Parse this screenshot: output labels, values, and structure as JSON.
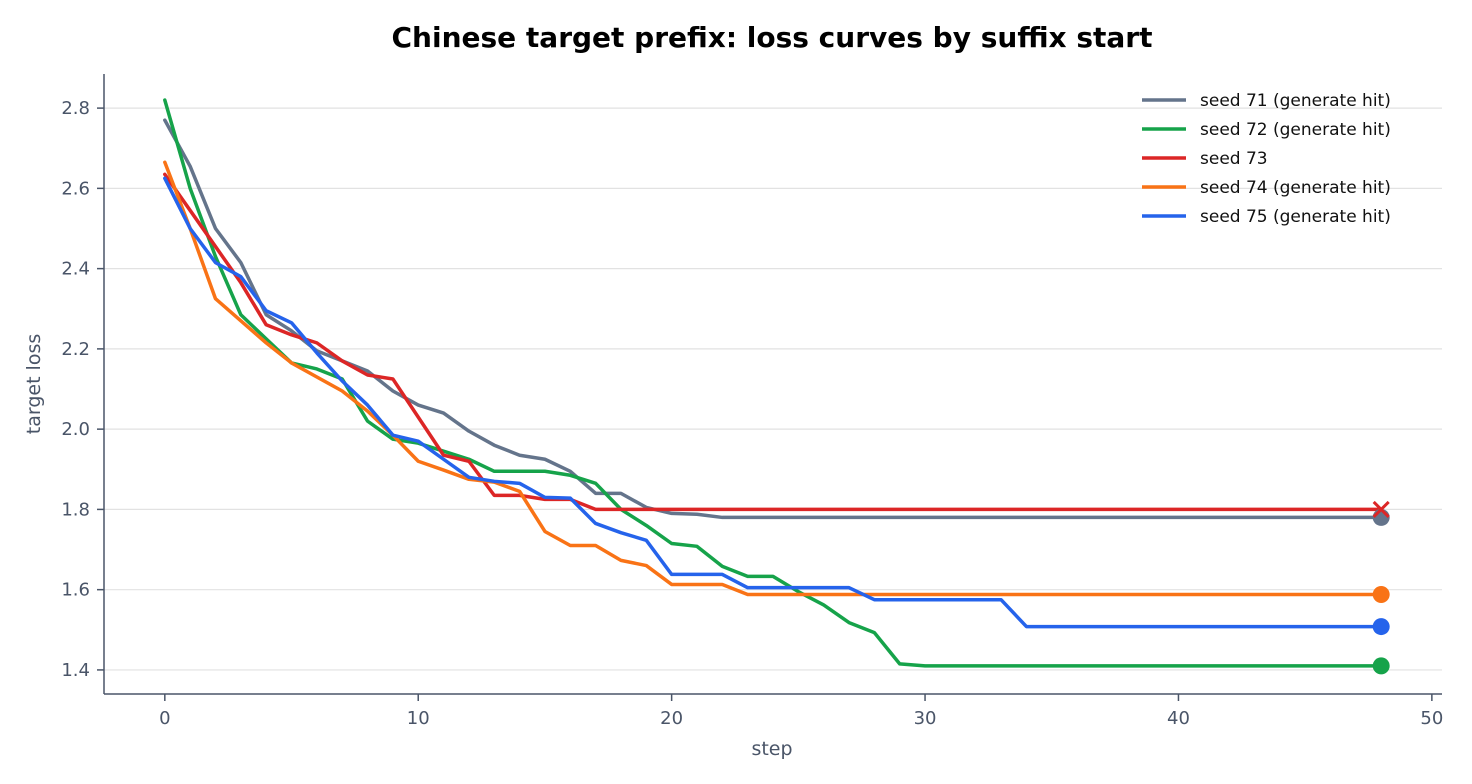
{
  "chart_data": {
    "type": "line",
    "title": "Chinese target prefix: loss curves by suffix start",
    "xlabel": "step",
    "ylabel": "target loss",
    "xlim": [
      -2.4,
      50.4
    ],
    "ylim": [
      1.34,
      2.885
    ],
    "xticks": [
      0,
      10,
      20,
      30,
      40,
      50
    ],
    "yticks": [
      1.4,
      1.6,
      1.8,
      2.0,
      2.2,
      2.4,
      2.6,
      2.8
    ],
    "grid": "horizontal",
    "legend_position": "top-right",
    "series": [
      {
        "name": "seed 71 (generate hit)",
        "color": "#64748b",
        "end_marker": "circle",
        "x": [
          0,
          1,
          2,
          3,
          4,
          5,
          6,
          7,
          8,
          9,
          10,
          11,
          12,
          13,
          14,
          15,
          16,
          17,
          18,
          19,
          20,
          21,
          22,
          23,
          24,
          25,
          26,
          27,
          28,
          29,
          30,
          31,
          32,
          33,
          34,
          35,
          36,
          37,
          38,
          39,
          40,
          41,
          42,
          43,
          44,
          45,
          46,
          47,
          48
        ],
        "y": [
          2.77,
          2.655,
          2.5,
          2.415,
          2.285,
          2.245,
          2.195,
          2.17,
          2.145,
          2.095,
          2.06,
          2.04,
          1.995,
          1.96,
          1.935,
          1.925,
          1.895,
          1.84,
          1.84,
          1.805,
          1.79,
          1.788,
          1.78,
          1.78,
          1.78,
          1.78,
          1.78,
          1.78,
          1.78,
          1.78,
          1.78,
          1.78,
          1.78,
          1.78,
          1.78,
          1.78,
          1.78,
          1.78,
          1.78,
          1.78,
          1.78,
          1.78,
          1.78,
          1.78,
          1.78,
          1.78,
          1.78,
          1.78,
          1.78
        ]
      },
      {
        "name": "seed 72 (generate hit)",
        "color": "#16a34a",
        "end_marker": "circle",
        "x": [
          0,
          1,
          2,
          3,
          4,
          5,
          6,
          7,
          8,
          9,
          10,
          11,
          12,
          13,
          14,
          15,
          16,
          17,
          18,
          19,
          20,
          21,
          22,
          23,
          24,
          25,
          26,
          27,
          28,
          29,
          30,
          31,
          32,
          33,
          34,
          35,
          36,
          37,
          38,
          39,
          40,
          41,
          42,
          43,
          44,
          45,
          46,
          47,
          48
        ],
        "y": [
          2.82,
          2.6,
          2.43,
          2.285,
          2.225,
          2.165,
          2.15,
          2.125,
          2.02,
          1.975,
          1.965,
          1.945,
          1.925,
          1.895,
          1.895,
          1.895,
          1.885,
          1.865,
          1.8,
          1.76,
          1.715,
          1.708,
          1.658,
          1.633,
          1.633,
          1.595,
          1.562,
          1.518,
          1.493,
          1.415,
          1.41,
          1.41,
          1.41,
          1.41,
          1.41,
          1.41,
          1.41,
          1.41,
          1.41,
          1.41,
          1.41,
          1.41,
          1.41,
          1.41,
          1.41,
          1.41,
          1.41,
          1.41,
          1.41
        ]
      },
      {
        "name": "seed 73",
        "color": "#dc2626",
        "end_marker": "x",
        "x": [
          0,
          1,
          2,
          3,
          4,
          5,
          6,
          7,
          8,
          9,
          10,
          11,
          12,
          13,
          14,
          15,
          16,
          17,
          18,
          19,
          20,
          21,
          22,
          23,
          24,
          25,
          26,
          27,
          28,
          29,
          30,
          31,
          32,
          33,
          34,
          35,
          36,
          37,
          38,
          39,
          40,
          41,
          42,
          43,
          44,
          45,
          46,
          47,
          48
        ],
        "y": [
          2.635,
          2.545,
          2.455,
          2.365,
          2.26,
          2.235,
          2.215,
          2.17,
          2.135,
          2.125,
          2.03,
          1.935,
          1.92,
          1.835,
          1.835,
          1.825,
          1.825,
          1.8,
          1.8,
          1.8,
          1.8,
          1.8,
          1.8,
          1.8,
          1.8,
          1.8,
          1.8,
          1.8,
          1.8,
          1.8,
          1.8,
          1.8,
          1.8,
          1.8,
          1.8,
          1.8,
          1.8,
          1.8,
          1.8,
          1.8,
          1.8,
          1.8,
          1.8,
          1.8,
          1.8,
          1.8,
          1.8,
          1.8,
          1.8
        ]
      },
      {
        "name": "seed 74 (generate hit)",
        "color": "#f97316",
        "end_marker": "circle",
        "x": [
          0,
          1,
          2,
          3,
          4,
          5,
          6,
          7,
          8,
          9,
          10,
          11,
          12,
          13,
          14,
          15,
          16,
          17,
          18,
          19,
          20,
          21,
          22,
          23,
          24,
          25,
          26,
          27,
          28,
          29,
          30,
          31,
          32,
          33,
          34,
          35,
          36,
          37,
          38,
          39,
          40,
          41,
          42,
          43,
          44,
          45,
          46,
          47,
          48
        ],
        "y": [
          2.665,
          2.5,
          2.325,
          2.27,
          2.215,
          2.165,
          2.13,
          2.095,
          2.045,
          1.985,
          1.92,
          1.898,
          1.875,
          1.868,
          1.845,
          1.745,
          1.71,
          1.71,
          1.673,
          1.66,
          1.613,
          1.613,
          1.613,
          1.588,
          1.588,
          1.588,
          1.588,
          1.588,
          1.588,
          1.588,
          1.588,
          1.588,
          1.588,
          1.588,
          1.588,
          1.588,
          1.588,
          1.588,
          1.588,
          1.588,
          1.588,
          1.588,
          1.588,
          1.588,
          1.588,
          1.588,
          1.588,
          1.588,
          1.588
        ]
      },
      {
        "name": "seed 75 (generate hit)",
        "color": "#2563eb",
        "end_marker": "circle",
        "x": [
          0,
          1,
          2,
          3,
          4,
          5,
          6,
          7,
          8,
          9,
          10,
          11,
          12,
          13,
          14,
          15,
          16,
          17,
          18,
          19,
          20,
          21,
          22,
          23,
          24,
          25,
          26,
          27,
          28,
          29,
          30,
          31,
          32,
          33,
          34,
          35,
          36,
          37,
          38,
          39,
          40,
          41,
          42,
          43,
          44,
          45,
          46,
          47,
          48
        ],
        "y": [
          2.625,
          2.5,
          2.415,
          2.38,
          2.295,
          2.265,
          2.19,
          2.12,
          2.06,
          1.985,
          1.97,
          1.925,
          1.88,
          1.87,
          1.865,
          1.83,
          1.828,
          1.765,
          1.742,
          1.723,
          1.638,
          1.638,
          1.638,
          1.605,
          1.605,
          1.605,
          1.605,
          1.605,
          1.575,
          1.575,
          1.575,
          1.575,
          1.575,
          1.575,
          1.508,
          1.508,
          1.508,
          1.508,
          1.508,
          1.508,
          1.508,
          1.508,
          1.508,
          1.508,
          1.508,
          1.508,
          1.508,
          1.508,
          1.508
        ]
      }
    ]
  }
}
